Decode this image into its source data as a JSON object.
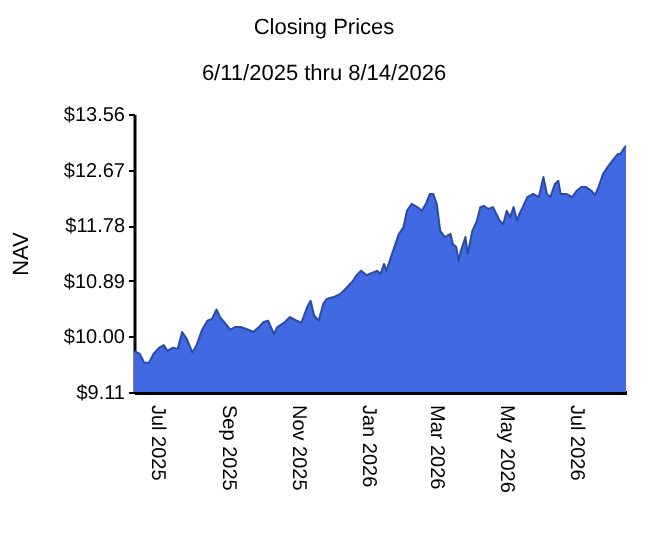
{
  "chart_data": {
    "type": "area",
    "title": "Closing Prices",
    "subtitle": "6/11/2025 thru 8/14/2026",
    "ylabel": "NAV",
    "xlim": [
      "2025-06-11",
      "2026-08-14"
    ],
    "xticks": [
      {
        "value": "2025-07-01",
        "label": "Jul 2025"
      },
      {
        "value": "2025-09-01",
        "label": "Sep 2025"
      },
      {
        "value": "2025-11-01",
        "label": "Nov 2025"
      },
      {
        "value": "2026-01-01",
        "label": "Jan 2026"
      },
      {
        "value": "2026-03-01",
        "label": "Mar 2026"
      },
      {
        "value": "2026-05-01",
        "label": "May 2026"
      },
      {
        "value": "2026-07-01",
        "label": "Jul 2026"
      }
    ],
    "ylim": [
      9.11,
      13.56
    ],
    "yticks": [
      {
        "value": 9.11,
        "label": "$9.11"
      },
      {
        "value": 10.0,
        "label": "$10.00"
      },
      {
        "value": 10.89,
        "label": "$10.89"
      },
      {
        "value": 11.78,
        "label": "$11.78"
      },
      {
        "value": 12.67,
        "label": "$12.67"
      },
      {
        "value": 13.56,
        "label": "$13.56"
      }
    ],
    "grid": false,
    "x": [
      "2025-06-11",
      "2025-06-16",
      "2025-06-20",
      "2025-06-24",
      "2025-06-28",
      "2025-07-03",
      "2025-07-07",
      "2025-07-10",
      "2025-07-15",
      "2025-07-19",
      "2025-07-23",
      "2025-07-27",
      "2025-08-01",
      "2025-08-05",
      "2025-08-09",
      "2025-08-14",
      "2025-08-18",
      "2025-08-22",
      "2025-08-25",
      "2025-08-30",
      "2025-09-03",
      "2025-09-07",
      "2025-09-12",
      "2025-09-18",
      "2025-09-23",
      "2025-09-28",
      "2025-10-02",
      "2025-10-06",
      "2025-10-11",
      "2025-10-14",
      "2025-10-20",
      "2025-10-25",
      "2025-10-31",
      "2025-11-04",
      "2025-11-09",
      "2025-11-12",
      "2025-11-15",
      "2025-11-19",
      "2025-11-23",
      "2025-11-26",
      "2025-12-02",
      "2025-12-08",
      "2025-12-14",
      "2025-12-19",
      "2025-12-22",
      "2025-12-26",
      "2025-12-31",
      "2026-01-05",
      "2026-01-09",
      "2026-01-12",
      "2026-01-15",
      "2026-01-17",
      "2026-01-20",
      "2026-01-24",
      "2026-01-28",
      "2026-02-01",
      "2026-02-04",
      "2026-02-08",
      "2026-02-13",
      "2026-02-17",
      "2026-02-21",
      "2026-02-24",
      "2026-02-27",
      "2026-03-02",
      "2026-03-05",
      "2026-03-09",
      "2026-03-14",
      "2026-03-16",
      "2026-03-19",
      "2026-03-21",
      "2026-03-23",
      "2026-03-27",
      "2026-03-29",
      "2026-04-02",
      "2026-04-06",
      "2026-04-09",
      "2026-04-12",
      "2026-04-16",
      "2026-04-20",
      "2026-04-23",
      "2026-04-26",
      "2026-04-29",
      "2026-05-02",
      "2026-05-05",
      "2026-05-08",
      "2026-05-11",
      "2026-05-13",
      "2026-05-16",
      "2026-05-20",
      "2026-05-25",
      "2026-05-30",
      "2026-06-03",
      "2026-06-06",
      "2026-06-09",
      "2026-06-13",
      "2026-06-16",
      "2026-06-18",
      "2026-06-23",
      "2026-06-28",
      "2026-07-02",
      "2026-07-06",
      "2026-07-10",
      "2026-07-15",
      "2026-07-18",
      "2026-07-21",
      "2026-07-25",
      "2026-07-29",
      "2026-08-02",
      "2026-08-07",
      "2026-08-09",
      "2026-08-13",
      "2026-08-14"
    ],
    "series": [
      {
        "color": "#4169e1",
        "values": [
          9.77,
          9.72,
          9.58,
          9.58,
          9.72,
          9.82,
          9.86,
          9.77,
          9.82,
          9.8,
          10.07,
          9.96,
          9.74,
          9.88,
          10.09,
          10.25,
          10.28,
          10.43,
          10.31,
          10.2,
          10.11,
          10.15,
          10.15,
          10.11,
          10.07,
          10.15,
          10.23,
          10.25,
          10.04,
          10.15,
          10.22,
          10.31,
          10.25,
          10.22,
          10.47,
          10.57,
          10.34,
          10.25,
          10.52,
          10.6,
          10.63,
          10.68,
          10.79,
          10.89,
          10.98,
          11.05,
          10.98,
          11.02,
          11.05,
          11.0,
          11.16,
          11.05,
          11.21,
          11.43,
          11.64,
          11.75,
          12.01,
          12.12,
          12.07,
          12.01,
          12.14,
          12.28,
          12.28,
          12.12,
          11.69,
          11.59,
          11.64,
          11.48,
          11.43,
          11.21,
          11.37,
          11.59,
          11.32,
          11.69,
          11.85,
          12.07,
          12.09,
          12.04,
          12.07,
          11.96,
          11.85,
          11.8,
          12.01,
          11.91,
          12.07,
          11.85,
          11.96,
          12.07,
          12.23,
          12.28,
          12.23,
          12.55,
          12.28,
          12.23,
          12.44,
          12.49,
          12.28,
          12.28,
          12.23,
          12.33,
          12.39,
          12.39,
          12.33,
          12.26,
          12.39,
          12.6,
          12.71,
          12.81,
          12.92,
          12.92,
          13.03,
          13.05
        ]
      }
    ]
  }
}
